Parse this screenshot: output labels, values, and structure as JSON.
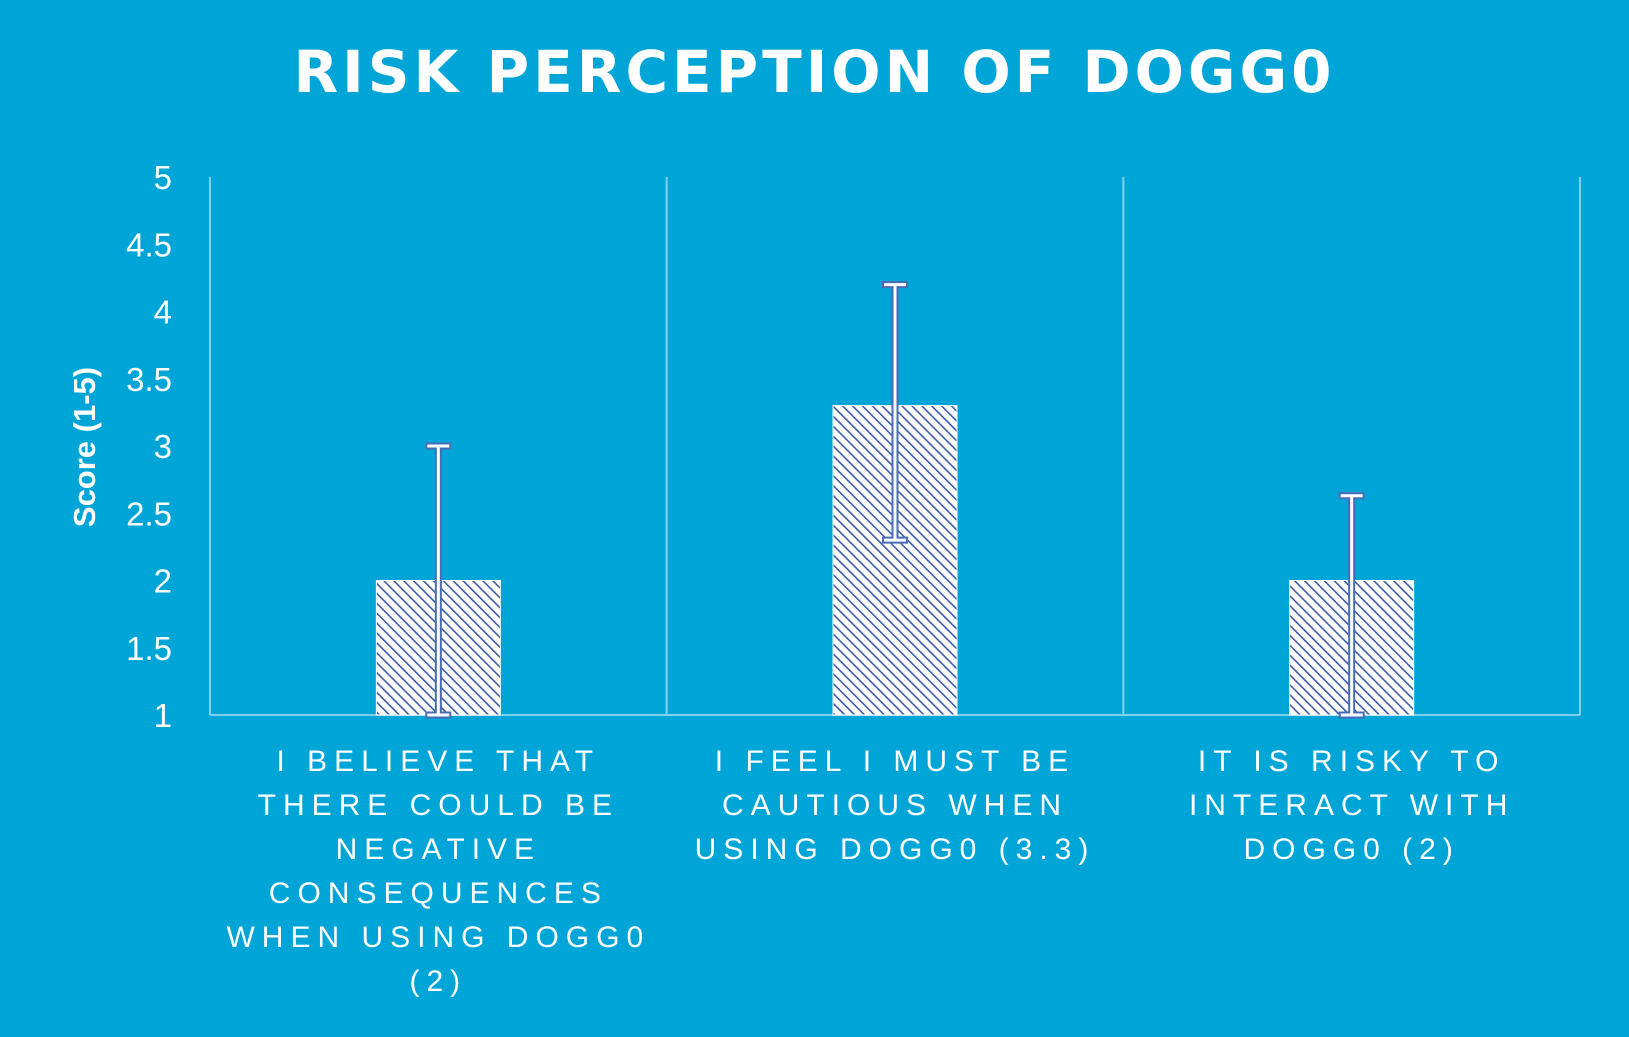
{
  "colors": {
    "background": "#00A5D8",
    "bar_hatch": "#3B5BA9",
    "bar_fill": "#ffffff",
    "gridline": "#7FD0EA",
    "errorbar": "#4A6BB5",
    "text": "#ffffff"
  },
  "chart_data": {
    "type": "bar",
    "title": "RISK PERCEPTION OF DOGG0",
    "xlabel": "",
    "ylabel": "Score (1-5)",
    "ylim": [
      1,
      5
    ],
    "yticks": [
      1,
      1.5,
      2,
      2.5,
      3,
      3.5,
      4,
      4.5,
      5
    ],
    "ytick_labels": [
      "1",
      "1.5",
      "2",
      "2.5",
      "3",
      "3.5",
      "4",
      "4.5",
      "5"
    ],
    "grid": "vertical separators between categories",
    "legend": "none",
    "categories": [
      "I BELIEVE THAT THERE COULD BE NEGATIVE CONSEQUENCES WHEN USING DOGG0 (2)",
      "I FEEL I MUST BE CAUTIOUS WHEN USING DOGG0 (3.3)",
      "IT IS RISKY TO INTERACT WITH DOGG0 (2)"
    ],
    "category_lines": [
      [
        "I BELIEVE THAT",
        "THERE COULD BE",
        "NEGATIVE",
        "CONSEQUENCES",
        "WHEN USING DOGG0",
        "(2)"
      ],
      [
        "I FEEL I MUST BE",
        "CAUTIOUS WHEN",
        "USING DOGG0 (3.3)"
      ],
      [
        "IT IS RISKY TO",
        "INTERACT WITH",
        "DOGG0 (2)"
      ]
    ],
    "values": [
      2,
      3.3,
      2
    ],
    "error_low": [
      1,
      2.3,
      1
    ],
    "error_high": [
      3,
      4.2,
      2.63
    ]
  }
}
